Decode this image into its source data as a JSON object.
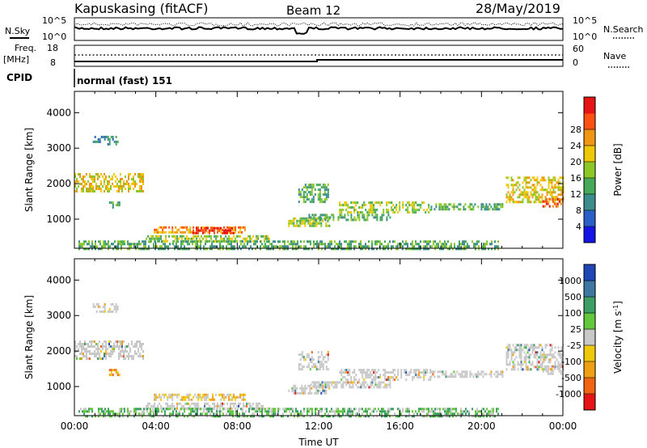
{
  "header": {
    "station": "Kapuskasing (fitACF)",
    "beam": "Beam 12",
    "date": "28/May/2019"
  },
  "top_panel": {
    "left_label": "N.Sky",
    "right_label": "N.Search",
    "ticks_left": [
      "10^5",
      "10^0"
    ],
    "ticks_right": [
      "10^5",
      "10^0"
    ]
  },
  "freq_panel": {
    "left_label_top": "Freq.",
    "left_label_unit": "[MHz]",
    "right_label": "Nave",
    "ticks_left": [
      "18",
      "8"
    ],
    "ticks_right": [
      "60",
      "0"
    ]
  },
  "cpid": {
    "label": "CPID",
    "mode": "normal (fast) 151"
  },
  "chart_data": [
    {
      "type": "heatmap",
      "name": "power",
      "ylabel": "Slant Range [km]",
      "ylim": [
        180,
        4600
      ],
      "yticks": [
        1000,
        2000,
        3000,
        4000
      ],
      "xlim": [
        0,
        24
      ],
      "colorbar": {
        "label": "Power [dB]",
        "ticks": [
          "4",
          "8",
          "12",
          "16",
          "20",
          "24",
          "28"
        ],
        "colors": [
          "#1414e6",
          "#2860c8",
          "#3c8c8c",
          "#46aa5a",
          "#8cc828",
          "#f0c80a",
          "#f09614",
          "#ff5014",
          "#e61414"
        ]
      },
      "echo_regions": [
        {
          "t0": 0.0,
          "t1": 3.4,
          "r0": 1800,
          "r1": 2300,
          "level": 5
        },
        {
          "t0": 0.9,
          "t1": 2.1,
          "r0": 3100,
          "r1": 3350,
          "level": 2
        },
        {
          "t0": 1.7,
          "t1": 2.2,
          "r0": 1300,
          "r1": 1500,
          "level": 3
        },
        {
          "t0": 3.9,
          "t1": 8.4,
          "r0": 600,
          "r1": 800,
          "level": 6
        },
        {
          "t0": 5.8,
          "t1": 7.8,
          "r0": 620,
          "r1": 780,
          "level": 8
        },
        {
          "t0": 3.5,
          "t1": 9.6,
          "r0": 350,
          "r1": 550,
          "level": 4
        },
        {
          "t0": 0.2,
          "t1": 20.8,
          "r0": 190,
          "r1": 400,
          "level": 3
        },
        {
          "t0": 10.5,
          "t1": 12.5,
          "r0": 800,
          "r1": 1050,
          "level": 4
        },
        {
          "t0": 11.0,
          "t1": 12.5,
          "r0": 1500,
          "r1": 2000,
          "level": 3
        },
        {
          "t0": 13.0,
          "t1": 17.5,
          "r0": 1200,
          "r1": 1500,
          "level": 4
        },
        {
          "t0": 17.5,
          "t1": 21.0,
          "r0": 1250,
          "r1": 1450,
          "level": 3
        },
        {
          "t0": 11.5,
          "t1": 15.5,
          "r0": 1000,
          "r1": 1150,
          "level": 3
        },
        {
          "t0": 21.2,
          "t1": 24.0,
          "r0": 1500,
          "r1": 2200,
          "level": 5
        },
        {
          "t0": 23.0,
          "t1": 24.0,
          "r0": 1350,
          "r1": 1600,
          "level": 7
        }
      ]
    },
    {
      "type": "heatmap",
      "name": "velocity",
      "ylabel": "Slant Range [km]",
      "ylim": [
        180,
        4600
      ],
      "yticks": [
        1000,
        2000,
        3000,
        4000
      ],
      "xlim": [
        0,
        24
      ],
      "xlabel": "Time UT",
      "xticks": [
        "00:00",
        "04:00",
        "08:00",
        "12:00",
        "16:00",
        "20:00",
        "00:00"
      ],
      "colorbar": {
        "label": "Velocity [m s",
        "label_sup": "-1",
        "label_end": "]",
        "ticks": [
          "1000",
          "500",
          "100",
          "25",
          "-25",
          "-100",
          "-500",
          "-1000"
        ],
        "colors": [
          "#1e46b4",
          "#3c78a0",
          "#3ca064",
          "#64c83c",
          "#c8c8c8",
          "#f0c80a",
          "#f0a014",
          "#f06414",
          "#e61414"
        ]
      },
      "echo_regions": [
        {
          "t0": 0.0,
          "t1": 3.4,
          "r0": 1800,
          "r1": 2300,
          "level": 4
        },
        {
          "t0": 0.9,
          "t1": 2.1,
          "r0": 3100,
          "r1": 3350,
          "level": 4
        },
        {
          "t0": 1.7,
          "t1": 2.2,
          "r0": 1300,
          "r1": 1500,
          "level": 6
        },
        {
          "t0": 3.9,
          "t1": 8.4,
          "r0": 600,
          "r1": 800,
          "level": 5
        },
        {
          "t0": 3.5,
          "t1": 9.6,
          "r0": 350,
          "r1": 550,
          "level": 4
        },
        {
          "t0": 0.2,
          "t1": 20.8,
          "r0": 190,
          "r1": 400,
          "level": 3
        },
        {
          "t0": 10.5,
          "t1": 12.5,
          "r0": 800,
          "r1": 1050,
          "level": 4
        },
        {
          "t0": 11.0,
          "t1": 12.5,
          "r0": 1500,
          "r1": 2000,
          "level": 4
        },
        {
          "t0": 13.0,
          "t1": 17.5,
          "r0": 1200,
          "r1": 1500,
          "level": 4
        },
        {
          "t0": 17.5,
          "t1": 21.0,
          "r0": 1250,
          "r1": 1450,
          "level": 4
        },
        {
          "t0": 11.5,
          "t1": 15.5,
          "r0": 1000,
          "r1": 1150,
          "level": 4
        },
        {
          "t0": 21.2,
          "t1": 24.0,
          "r0": 1500,
          "r1": 2200,
          "level": 4
        },
        {
          "t0": 23.0,
          "t1": 24.0,
          "r0": 1350,
          "r1": 1600,
          "level": 4
        }
      ]
    }
  ]
}
